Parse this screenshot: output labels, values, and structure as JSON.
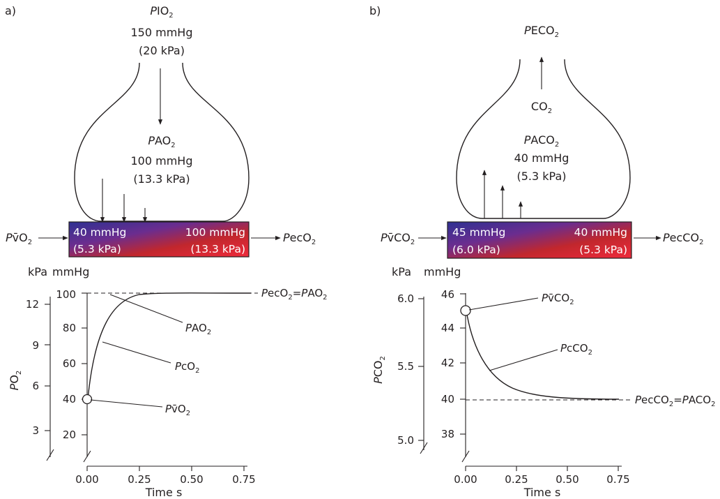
{
  "panel_a": {
    "letter": "a)",
    "inspired": {
      "var": "P",
      "label": "IO",
      "sub": "2",
      "value_mmhg": "150 mmHg",
      "value_kpa": "(20 kPa)"
    },
    "alveolar": {
      "var": "P",
      "label": "AO",
      "sub": "2",
      "value_mmhg": "100 mmHg",
      "value_kpa": "(13.3 kPa)"
    },
    "venous_in": {
      "var": "P",
      "label": "v̄O",
      "sub": "2"
    },
    "ec_out": {
      "var": "P",
      "label": "ecO",
      "sub": "2"
    },
    "capillary": {
      "left_mmhg": "40 mmHg",
      "left_kpa": "(5.3 kPa)",
      "right_mmhg": "100 mmHg",
      "right_kpa": "(13.3 kPa)"
    },
    "graph": {
      "unit_kpa": "kPa",
      "unit_mmhg": "mmHg",
      "kpa_ticks": [
        "12",
        "9",
        "6",
        "3"
      ],
      "mmhg_ticks": [
        "100",
        "80",
        "60",
        "40",
        "20"
      ],
      "x_ticks": [
        "0.00",
        "0.25",
        "0.50",
        "0.75"
      ],
      "xlabel": "Time s",
      "ylabel_var": "P",
      "ylabel_label": "O",
      "ylabel_sub": "2",
      "label_equal": {
        "p1": "P",
        "l1": "ecO",
        "s1": "2",
        "eq": "=",
        "p2": "P",
        "l2": "AO",
        "s2": "2"
      },
      "label_alv": {
        "p": "P",
        "l": "AO",
        "s": "2"
      },
      "label_cap": {
        "p": "P",
        "l": "cO",
        "s": "2"
      },
      "label_ven": {
        "p": "P",
        "l": "v̄O",
        "s": "2"
      }
    }
  },
  "panel_b": {
    "letter": "b)",
    "expired": {
      "var": "P",
      "label": "ECO",
      "sub": "2"
    },
    "co2_arrow": {
      "label": "CO",
      "sub": "2"
    },
    "alveolar": {
      "var": "P",
      "label": "ACO",
      "sub": "2",
      "value_mmhg": "40 mmHg",
      "value_kpa": "(5.3 kPa)"
    },
    "venous_in": {
      "var": "P",
      "label": "v̄CO",
      "sub": "2"
    },
    "ec_out": {
      "var": "P",
      "label": "ecCO",
      "sub": "2"
    },
    "capillary": {
      "left_mmhg": "45 mmHg",
      "left_kpa": "(6.0 kPa)",
      "right_mmhg": "40 mmHg",
      "right_kpa": "(5.3 kPa)"
    },
    "graph": {
      "unit_kpa": "kPa",
      "unit_mmhg": "mmHg",
      "kpa_ticks": [
        "6.0",
        "5.5",
        "5.0"
      ],
      "mmhg_ticks": [
        "46",
        "44",
        "42",
        "40",
        "38"
      ],
      "x_ticks": [
        "0.00",
        "0.25",
        "0.50",
        "0.75"
      ],
      "xlabel": "Time s",
      "ylabel_var": "P",
      "ylabel_label": "CO",
      "ylabel_sub": "2",
      "label_ven": {
        "p": "P",
        "l": "v̄CO",
        "s": "2"
      },
      "label_cap": {
        "p": "P",
        "l": "cCO",
        "s": "2"
      },
      "label_equal": {
        "p1": "P",
        "l1": "ecCO",
        "s1": "2",
        "eq": "=",
        "p2": "P",
        "l2": "ACO",
        "s2": "2"
      }
    }
  },
  "colors": {
    "venous": "#3a3aa0",
    "arterial": "#ee2a3b",
    "ink": "#231f20"
  }
}
